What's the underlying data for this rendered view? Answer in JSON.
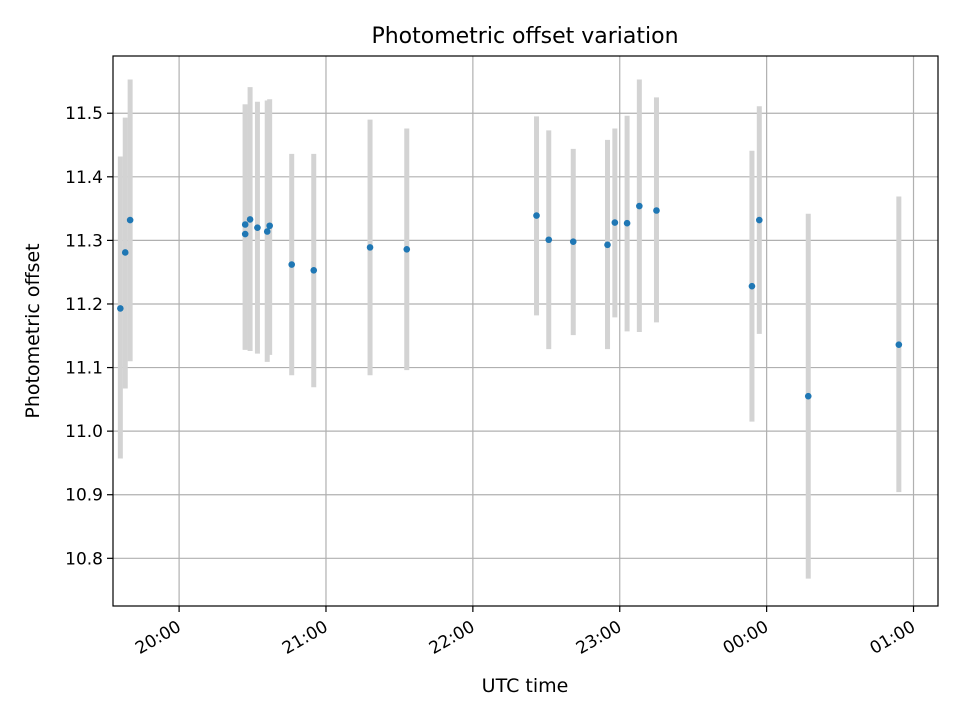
{
  "chart_data": {
    "type": "scatter",
    "title": "Photometric offset variation",
    "xlabel": "UTC time",
    "ylabel": "Photometric offset",
    "x_axis_kind": "time",
    "xlim": [
      "19:33",
      "01:10"
    ],
    "ylim": [
      10.725,
      11.59
    ],
    "x_ticks": [
      "20:00",
      "21:00",
      "22:00",
      "23:00",
      "00:00",
      "01:00"
    ],
    "y_ticks": [
      "10.8",
      "10.9",
      "11.0",
      "11.1",
      "11.2",
      "11.3",
      "11.4",
      "11.5"
    ],
    "grid": true,
    "series": [
      {
        "name": "",
        "marker_color": "#1f77b4",
        "errorbar_color": "#d3d3d3",
        "points": [
          {
            "x": "19:36",
            "y": 11.193,
            "ylow": 10.957,
            "yhigh": 11.432
          },
          {
            "x": "19:38",
            "y": 11.281,
            "ylow": 11.067,
            "yhigh": 11.493
          },
          {
            "x": "19:40",
            "y": 11.332,
            "ylow": 11.11,
            "yhigh": 11.553
          },
          {
            "x": "20:27",
            "y": 11.325,
            "ylow": 11.128,
            "yhigh": 11.514
          },
          {
            "x": "20:27",
            "y": 11.31,
            "ylow": 11.128,
            "yhigh": 11.514
          },
          {
            "x": "20:29",
            "y": 11.333,
            "ylow": 11.126,
            "yhigh": 11.541
          },
          {
            "x": "20:32",
            "y": 11.32,
            "ylow": 11.122,
            "yhigh": 11.518
          },
          {
            "x": "20:36",
            "y": 11.314,
            "ylow": 11.109,
            "yhigh": 11.52
          },
          {
            "x": "20:37",
            "y": 11.323,
            "ylow": 11.12,
            "yhigh": 11.522
          },
          {
            "x": "20:46",
            "y": 11.262,
            "ylow": 11.088,
            "yhigh": 11.436
          },
          {
            "x": "20:55",
            "y": 11.253,
            "ylow": 11.069,
            "yhigh": 11.436
          },
          {
            "x": "21:18",
            "y": 11.289,
            "ylow": 11.088,
            "yhigh": 11.49
          },
          {
            "x": "21:33",
            "y": 11.286,
            "ylow": 11.096,
            "yhigh": 11.476
          },
          {
            "x": "22:26",
            "y": 11.339,
            "ylow": 11.182,
            "yhigh": 11.495
          },
          {
            "x": "22:31",
            "y": 11.301,
            "ylow": 11.129,
            "yhigh": 11.473
          },
          {
            "x": "22:41",
            "y": 11.298,
            "ylow": 11.151,
            "yhigh": 11.444
          },
          {
            "x": "22:55",
            "y": 11.293,
            "ylow": 11.129,
            "yhigh": 11.458
          },
          {
            "x": "22:58",
            "y": 11.328,
            "ylow": 11.179,
            "yhigh": 11.476
          },
          {
            "x": "23:03",
            "y": 11.327,
            "ylow": 11.157,
            "yhigh": 11.496
          },
          {
            "x": "23:08",
            "y": 11.354,
            "ylow": 11.156,
            "yhigh": 11.553
          },
          {
            "x": "23:15",
            "y": 11.347,
            "ylow": 11.171,
            "yhigh": 11.525
          },
          {
            "x": "23:54",
            "y": 11.228,
            "ylow": 11.015,
            "yhigh": 11.441
          },
          {
            "x": "23:57",
            "y": 11.332,
            "ylow": 11.153,
            "yhigh": 11.511
          },
          {
            "x": "00:17",
            "y": 11.055,
            "ylow": 10.768,
            "yhigh": 11.342
          },
          {
            "x": "00:54",
            "y": 11.136,
            "ylow": 10.904,
            "yhigh": 11.369
          }
        ]
      }
    ]
  }
}
